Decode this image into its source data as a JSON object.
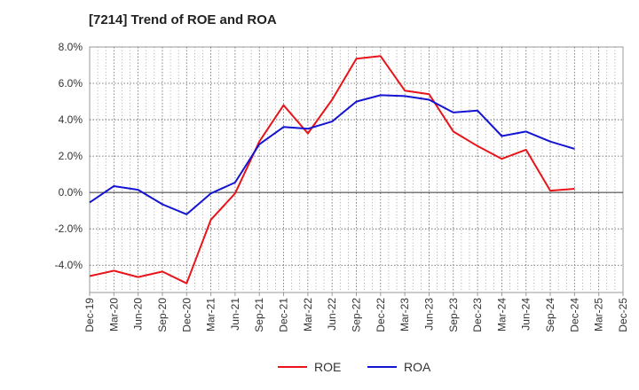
{
  "chart_data": {
    "type": "line",
    "title": "[7214]  Trend of ROE and ROA",
    "x_tick_labels": [
      "Dec-19",
      "Mar-20",
      "Jun-20",
      "Sep-20",
      "Dec-20",
      "Mar-21",
      "Jun-21",
      "Sep-21",
      "Dec-21",
      "Mar-22",
      "Jun-22",
      "Sep-22",
      "Dec-22",
      "Mar-23",
      "Jun-23",
      "Sep-23",
      "Dec-23",
      "Mar-24",
      "Jun-24",
      "Sep-24",
      "Dec-24",
      "Mar-25",
      "Dec-25"
    ],
    "x": [
      "Dec-19",
      "Mar-20",
      "Jun-20",
      "Sep-20",
      "Dec-20",
      "Mar-21",
      "Jun-21",
      "Sep-21",
      "Dec-21",
      "Mar-22",
      "Jun-22",
      "Sep-22",
      "Dec-22",
      "Mar-23",
      "Jun-23",
      "Sep-23",
      "Dec-23",
      "Mar-24",
      "Jun-24",
      "Sep-24",
      "Dec-24"
    ],
    "series": [
      {
        "name": "ROE",
        "color": "#e8141a",
        "values": [
          -4.6,
          -4.3,
          -4.65,
          -4.35,
          -5.0,
          -1.5,
          -0.05,
          2.8,
          4.8,
          3.25,
          5.1,
          7.35,
          7.5,
          5.6,
          5.4,
          3.35,
          2.55,
          1.85,
          2.35,
          0.1,
          0.2
        ]
      },
      {
        "name": "ROA",
        "color": "#1414d2",
        "values": [
          -0.55,
          0.35,
          0.15,
          -0.65,
          -1.2,
          -0.05,
          0.55,
          2.65,
          3.6,
          3.5,
          3.9,
          5.0,
          5.35,
          5.3,
          5.1,
          4.4,
          4.5,
          3.1,
          3.35,
          2.8,
          2.4
        ]
      }
    ],
    "y_ticks": [
      "8.0%",
      "6.0%",
      "4.0%",
      "2.0%",
      "0.0%",
      "-2.0%",
      "-4.0%"
    ],
    "ylim": [
      -5.5,
      8.0
    ],
    "grid": true,
    "legend_position": "bottom-center"
  }
}
